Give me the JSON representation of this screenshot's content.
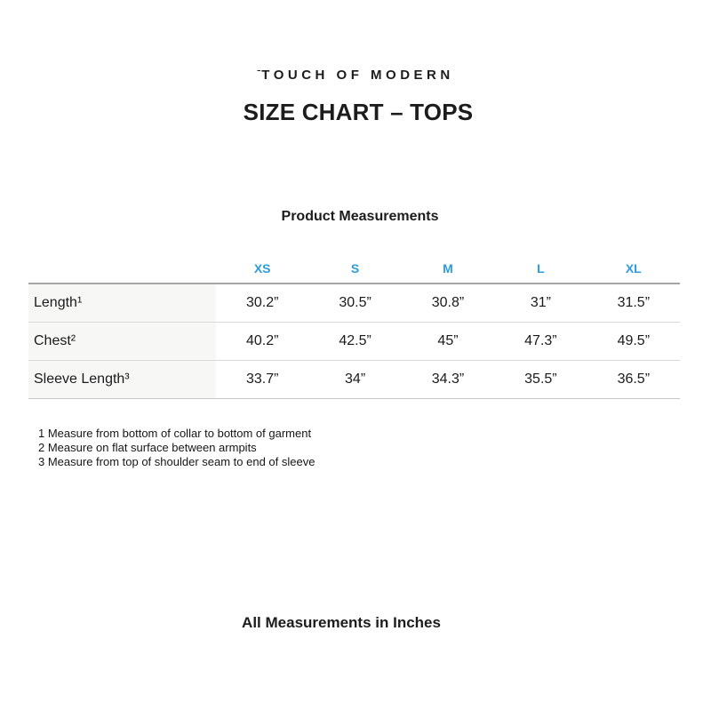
{
  "brand": {
    "logo_mark": "ˉ",
    "logo_text": "TOUCH OF MODERN"
  },
  "title": "SIZE CHART – TOPS",
  "measurements_table": {
    "caption": "Product Measurements",
    "size_headers": [
      "XS",
      "S",
      "M",
      "L",
      "XL"
    ],
    "rows": [
      {
        "label": "Length¹",
        "values": [
          "30.2”",
          "30.5”",
          "30.8”",
          "31”",
          "31.5”"
        ]
      },
      {
        "label": "Chest²",
        "values": [
          "40.2”",
          "42.5”",
          "45”",
          "47.3”",
          "49.5”"
        ]
      },
      {
        "label": "Sleeve Length³",
        "values": [
          "33.7”",
          "34”",
          "34.3”",
          "35.5”",
          "36.5”"
        ]
      }
    ]
  },
  "footnotes": [
    "1 Measure from bottom of collar to bottom of garment",
    "2 Measure on flat surface between armpits",
    "3 Measure from top of shoulder seam to end of sleeve"
  ],
  "footer_note": "All Measurements in Inches",
  "colors": {
    "accent_blue": "#2D9CDB",
    "label_column_bg": "#f7f7f6"
  }
}
